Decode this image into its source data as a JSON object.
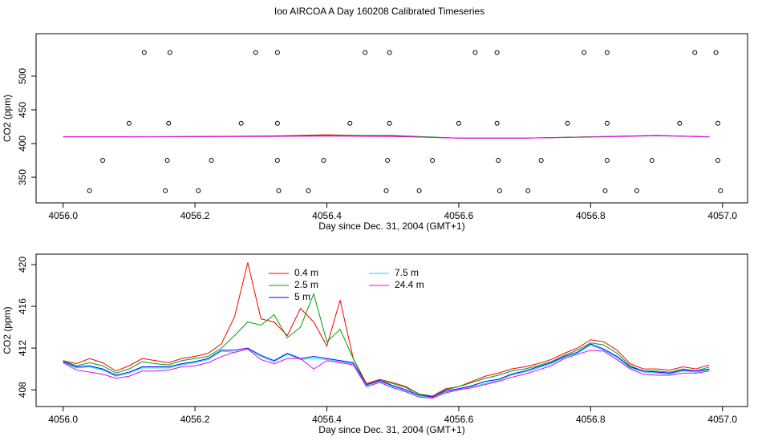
{
  "title": "Ioo AIRCOA A  Day 160208  Calibrated Timeseries",
  "chart_data": [
    {
      "type": "scatter",
      "xlabel": "Day since Dec. 31, 2004 (GMT+1)",
      "ylabel": "CO2 (ppm)",
      "xlim": [
        4055.959,
        4057.038
      ],
      "ylim": [
        312,
        563
      ],
      "xticks": [
        {
          "value": 4056,
          "label": "4056.0"
        },
        4056.2,
        4056.4,
        4056.6,
        4056.8,
        {
          "value": 4057,
          "label": "4057.0"
        }
      ],
      "yticks": [
        350,
        400,
        450,
        500
      ],
      "series": [
        {
          "color": "#000000",
          "marker": "circle",
          "x": [
            4056.123,
            4056.162,
            4056.292,
            4056.325,
            4056.458,
            4056.495,
            4056.625,
            4056.658,
            4056.79,
            4056.825,
            4056.958,
            4056.99,
            4056.1,
            4056.16,
            4056.27,
            4056.325,
            4056.435,
            4056.495,
            4056.6,
            4056.658,
            4056.765,
            4056.825,
            4056.935,
            4056.993,
            4056.06,
            4056.158,
            4056.225,
            4056.325,
            4056.395,
            4056.492,
            4056.56,
            4056.66,
            4056.725,
            4056.825,
            4056.893,
            4056.993,
            4056.04,
            4056.155,
            4056.205,
            4056.327,
            4056.372,
            4056.49,
            4056.54,
            4056.662,
            4056.705,
            4056.822,
            4056.87,
            4056.997
          ],
          "values": [
            535,
            535,
            535,
            535,
            535,
            535,
            535,
            535,
            535,
            535,
            535,
            535,
            430,
            430,
            430,
            430,
            430,
            430,
            430,
            430,
            430,
            430,
            430,
            430,
            375,
            375,
            375,
            375,
            375,
            375,
            375,
            375,
            375,
            375,
            375,
            375,
            330,
            330,
            330,
            330,
            330,
            330,
            330,
            330,
            330,
            330,
            330,
            330
          ]
        },
        {
          "color": "#ff0000",
          "marker": "line",
          "x": [
            4056.0,
            4056.1,
            4056.2,
            4056.3,
            4056.4,
            4056.5,
            4056.6,
            4056.7,
            4056.8,
            4056.9,
            4056.98
          ],
          "values": [
            410,
            410,
            410.5,
            411,
            413,
            411,
            408,
            408,
            410,
            412,
            410
          ]
        },
        {
          "color": "#00a000",
          "marker": "line",
          "x": [
            4056.0,
            4056.1,
            4056.2,
            4056.3,
            4056.4,
            4056.5,
            4056.6,
            4056.7,
            4056.8,
            4056.9,
            4056.98
          ],
          "values": [
            410,
            410,
            410.5,
            411,
            412,
            412,
            408,
            408,
            410,
            412,
            410
          ]
        },
        {
          "color": "#ff00ff",
          "marker": "line",
          "x": [
            4056.0,
            4056.1,
            4056.2,
            4056.3,
            4056.4,
            4056.5,
            4056.6,
            4056.7,
            4056.8,
            4056.9,
            4056.98
          ],
          "values": [
            410,
            410,
            410,
            410.5,
            411,
            410.5,
            408,
            408,
            409.5,
            411.5,
            410
          ]
        }
      ]
    },
    {
      "type": "line",
      "xlabel": "Day since Dec. 31, 2004 (GMT+1)",
      "ylabel": "CO2 (ppm)",
      "xlim": [
        4055.959,
        4057.038
      ],
      "ylim": [
        406.4,
        421
      ],
      "xticks": [
        {
          "value": 4056,
          "label": "4056.0"
        },
        4056.2,
        4056.4,
        4056.6,
        4056.8,
        {
          "value": 4057,
          "label": "4057.0"
        }
      ],
      "yticks": [
        408,
        412,
        416,
        420
      ],
      "x": [
        4056.0,
        4056.02,
        4056.04,
        4056.06,
        4056.08,
        4056.1,
        4056.12,
        4056.14,
        4056.16,
        4056.18,
        4056.2,
        4056.22,
        4056.24,
        4056.26,
        4056.28,
        4056.3,
        4056.32,
        4056.34,
        4056.36,
        4056.38,
        4056.4,
        4056.42,
        4056.44,
        4056.46,
        4056.48,
        4056.5,
        4056.52,
        4056.54,
        4056.56,
        4056.58,
        4056.6,
        4056.62,
        4056.64,
        4056.66,
        4056.68,
        4056.7,
        4056.72,
        4056.74,
        4056.76,
        4056.78,
        4056.8,
        4056.82,
        4056.84,
        4056.86,
        4056.88,
        4056.9,
        4056.92,
        4056.94,
        4056.96,
        4056.98
      ],
      "series": [
        {
          "name": "0.4 m",
          "color": "#ff0000",
          "values": [
            410.8,
            410.5,
            411.0,
            410.6,
            409.8,
            410.3,
            411.0,
            410.8,
            410.6,
            411.0,
            411.2,
            411.5,
            412.4,
            415.0,
            420.2,
            414.8,
            414.5,
            413.2,
            415.8,
            414.5,
            412.2,
            416.6,
            411.0,
            408.6,
            409.0,
            408.7,
            408.3,
            407.6,
            407.4,
            408.1,
            408.3,
            408.8,
            409.3,
            409.6,
            410.0,
            410.2,
            410.5,
            410.9,
            411.5,
            412.0,
            412.8,
            412.6,
            411.8,
            410.5,
            410.0,
            410.0,
            409.9,
            410.2,
            410.0,
            410.4
          ]
        },
        {
          "name": "2.5 m",
          "color": "#00a000",
          "values": [
            410.8,
            410.3,
            410.6,
            410.3,
            409.6,
            410.0,
            410.7,
            410.5,
            410.4,
            410.8,
            411.0,
            411.2,
            412.0,
            413.2,
            414.5,
            414.2,
            415.2,
            413.0,
            414.0,
            417.2,
            412.6,
            413.8,
            411.0,
            408.4,
            408.9,
            408.6,
            408.2,
            407.6,
            407.3,
            408.0,
            408.3,
            408.7,
            409.1,
            409.4,
            409.8,
            410.0,
            410.3,
            410.7,
            411.3,
            411.8,
            412.5,
            412.3,
            411.5,
            410.3,
            409.8,
            409.8,
            409.7,
            410.0,
            409.8,
            410.2
          ]
        },
        {
          "name": "5 m",
          "color": "#0000ff",
          "values": [
            410.7,
            410.2,
            410.3,
            410.0,
            409.4,
            409.7,
            410.2,
            410.2,
            410.2,
            410.5,
            410.7,
            411.0,
            411.8,
            411.8,
            412.0,
            411.3,
            410.8,
            411.5,
            411.0,
            411.2,
            411.0,
            410.8,
            410.6,
            408.5,
            408.9,
            408.4,
            408.0,
            407.5,
            407.3,
            407.9,
            408.1,
            408.4,
            408.8,
            409.0,
            409.5,
            409.8,
            410.2,
            410.6,
            411.2,
            411.6,
            412.4,
            411.9,
            411.2,
            410.2,
            409.8,
            409.7,
            409.6,
            409.9,
            409.8,
            410.0
          ]
        },
        {
          "name": "7.5 m",
          "color": "#00e5ee",
          "values": [
            410.6,
            410.1,
            410.2,
            409.9,
            409.3,
            409.6,
            410.1,
            410.1,
            410.1,
            410.4,
            410.6,
            410.9,
            411.7,
            411.6,
            411.9,
            411.2,
            410.7,
            411.4,
            410.9,
            411.0,
            410.9,
            410.7,
            410.5,
            408.4,
            408.8,
            408.3,
            407.9,
            407.4,
            407.2,
            407.8,
            408.0,
            408.3,
            408.6,
            408.9,
            409.4,
            409.7,
            410.1,
            410.5,
            411.1,
            411.5,
            412.3,
            411.8,
            411.1,
            410.1,
            409.7,
            409.6,
            409.5,
            409.8,
            409.7,
            409.9
          ]
        },
        {
          "name": "24.4 m",
          "color": "#ee00ee",
          "values": [
            410.6,
            409.9,
            409.7,
            409.5,
            409.1,
            409.3,
            409.8,
            409.8,
            409.9,
            410.2,
            410.3,
            410.6,
            411.2,
            411.6,
            411.9,
            410.9,
            410.5,
            411.0,
            411.0,
            410.0,
            410.8,
            410.6,
            410.4,
            408.3,
            408.7,
            408.2,
            407.8,
            407.3,
            407.2,
            407.7,
            408.0,
            408.2,
            408.5,
            408.8,
            409.2,
            409.5,
            409.9,
            410.3,
            411.0,
            411.4,
            411.8,
            411.7,
            410.9,
            410.0,
            409.5,
            409.4,
            409.4,
            409.6,
            409.6,
            409.8
          ]
        }
      ]
    }
  ]
}
